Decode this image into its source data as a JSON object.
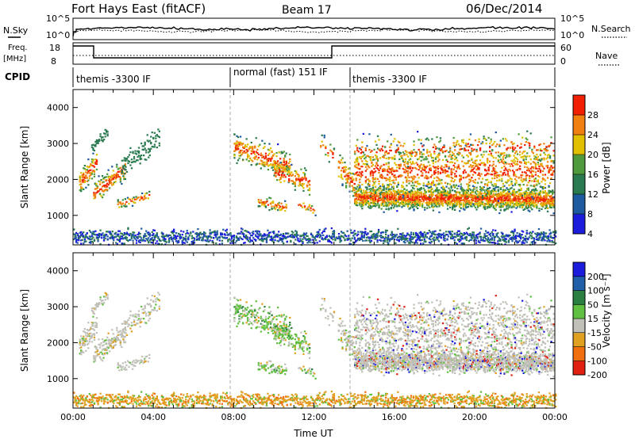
{
  "header": {
    "title": "Fort Hays East (fitACF)",
    "beam": "Beam 17",
    "date": "06/Dec/2014"
  },
  "strips": {
    "nsky_label": "N.Sky",
    "nsearch_label": "N.Search",
    "noise_ticks_left": [
      "10^5",
      "10^0"
    ],
    "noise_ticks_right": [
      "10^5",
      "10^0"
    ],
    "freq_label_1": "Freq.",
    "freq_label_2": "[MHz]",
    "freq_ticks": [
      "18",
      "8"
    ],
    "nave_label": "Nave",
    "nave_ticks": [
      "60",
      "0"
    ],
    "cpid_label": "CPID",
    "cpid_segments": [
      {
        "label": "themis -3300 IF",
        "start_hour": 0
      },
      {
        "label": "normal (fast) 151 IF",
        "start_hour": 8
      },
      {
        "label": "themis -3300 IF",
        "start_hour": 14
      }
    ]
  },
  "chart_data": [
    {
      "type": "heatmap",
      "title": "",
      "ylabel": "Slant Range [km]",
      "xlabel": "",
      "colorbar_label": "Power [dB]",
      "colorbar_ticks": [
        "28",
        "24",
        "20",
        "16",
        "12",
        "8",
        "4"
      ],
      "colors": [
        "#1c1cdc",
        "#1e5aa0",
        "#2a7a50",
        "#4f9a3c",
        "#e0c000",
        "#f08010",
        "#f02000"
      ],
      "ylim": [
        180,
        4500
      ],
      "yticks": [
        "4000",
        "3000",
        "2000",
        "1000"
      ],
      "xlim": [
        "00:00",
        "24:00"
      ]
    },
    {
      "type": "heatmap",
      "title": "",
      "ylabel": "Slant Range [km]",
      "xlabel": "Time UT",
      "colorbar_label": "Velocity [m s⁻¹]",
      "colorbar_ticks": [
        "200",
        "100",
        "50",
        "15",
        "-15",
        "-50",
        "-100",
        "-200"
      ],
      "colors": [
        "#1c1cdc",
        "#2060a8",
        "#2a8040",
        "#60c040",
        "#c0c0b8",
        "#e0a020",
        "#f07010",
        "#e02010"
      ],
      "ylim": [
        180,
        4500
      ],
      "yticks": [
        "4000",
        "3000",
        "2000",
        "1000"
      ],
      "xticks": [
        "00:00",
        "04:00",
        "08:00",
        "12:00",
        "16:00",
        "20:00",
        "00:00"
      ],
      "xlim": [
        "00:00",
        "24:00"
      ]
    }
  ]
}
